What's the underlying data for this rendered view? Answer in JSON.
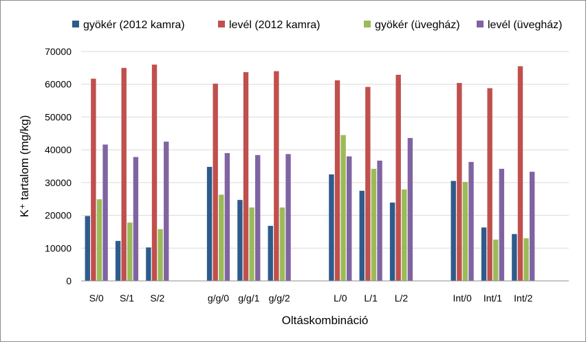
{
  "chart_data": {
    "type": "bar",
    "xlabel": "Oltáskombináció",
    "ylabel": "K⁺ tartalom (mg/kg)",
    "ylim": [
      0,
      70000
    ],
    "yticks": [
      0,
      10000,
      20000,
      30000,
      40000,
      50000,
      60000,
      70000
    ],
    "grid": true,
    "legend_position": "top",
    "group_sizes": [
      3,
      3,
      3,
      3
    ],
    "categories": [
      "S/0",
      "S/1",
      "S/2",
      "g/g/0",
      "g/g/1",
      "g/g/2",
      "L/0",
      "L/1",
      "L/2",
      "Int/0",
      "Int/1",
      "Int/2"
    ],
    "series": [
      {
        "name": "gyökér (2012 kamra)",
        "color": "#2e5b8c",
        "values": [
          19800,
          12200,
          10200,
          34800,
          24700,
          16800,
          32500,
          27500,
          23900,
          30500,
          16300,
          14300
        ]
      },
      {
        "name": "levél (2012 kamra)",
        "color": "#c0504d",
        "values": [
          61700,
          65000,
          66000,
          60200,
          63700,
          64000,
          61200,
          59200,
          62900,
          60400,
          58800,
          65500
        ]
      },
      {
        "name": "gyökér (üvegház)",
        "color": "#9bbb59",
        "values": [
          24900,
          17800,
          15800,
          26300,
          22400,
          22400,
          44500,
          34200,
          27900,
          30200,
          12600,
          13000
        ]
      },
      {
        "name": "levél (üvegház)",
        "color": "#8064a2",
        "values": [
          41600,
          37800,
          42500,
          39000,
          38400,
          38700,
          38000,
          36700,
          43600,
          36300,
          34200,
          33300
        ]
      }
    ]
  }
}
